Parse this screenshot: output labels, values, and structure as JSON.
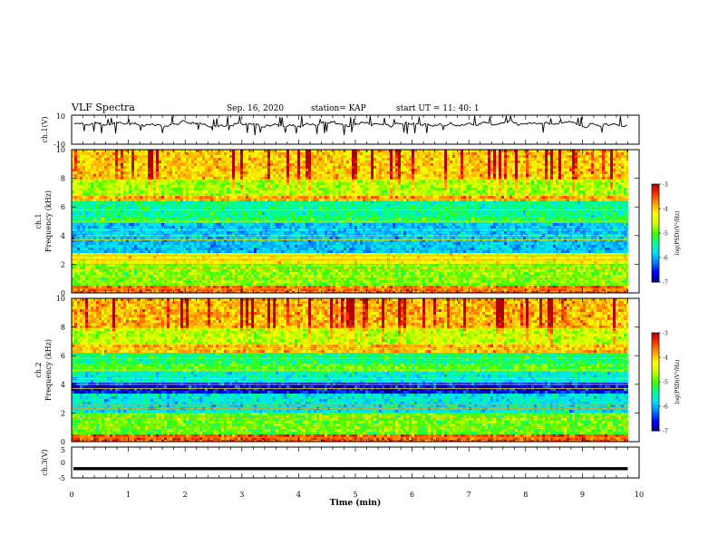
{
  "header": {
    "title": "VLF Spectra",
    "date": "Sep. 16, 2020",
    "station": "station= KAP",
    "start_ut": "start  UT =   11: 40: 1"
  },
  "chart_data": [
    {
      "type": "line",
      "panel": "ch1-waveform",
      "ylabel": "ch.1(V)",
      "yticks": [
        "10",
        "-10"
      ],
      "ylim": [
        -10,
        10
      ],
      "xlim": [
        0,
        10
      ],
      "series": [
        {
          "color": "#000000",
          "approx_level": 3.5,
          "approx_range": [
            0,
            7
          ]
        }
      ]
    },
    {
      "type": "heatmap",
      "panel": "ch1-spectrogram",
      "ylabel_line1": "ch.1",
      "ylabel_line2": "Frequency (kHz)",
      "yticks": [
        "0",
        "2",
        "4",
        "6",
        "8",
        "10"
      ],
      "ylim": [
        0,
        10
      ],
      "xlim": [
        0,
        10
      ],
      "data_end_min": 9.8,
      "bands": [
        {
          "freq_from": 0,
          "freq_to": 0.5,
          "level": -3.6
        },
        {
          "freq_from": 0.5,
          "freq_to": 2.1,
          "level": -4.8
        },
        {
          "freq_from": 2.1,
          "freq_to": 2.8,
          "level": -4.3
        },
        {
          "freq_from": 2.8,
          "freq_to": 4.8,
          "level": -5.9
        },
        {
          "freq_from": 4.8,
          "freq_to": 5.3,
          "level": -5.2
        },
        {
          "freq_from": 5.3,
          "freq_to": 6.3,
          "level": -5.4
        },
        {
          "freq_from": 6.3,
          "freq_to": 6.8,
          "level": -3.8
        },
        {
          "freq_from": 6.8,
          "freq_to": 8.0,
          "level": -4.7
        },
        {
          "freq_from": 8.0,
          "freq_to": 10.0,
          "level": -4.0
        }
      ],
      "colorbar": {
        "label": "log(PSD)(V²/Hz)",
        "ticks": [
          "-3",
          "-4",
          "-5",
          "-6",
          "-7"
        ],
        "range": [
          -7,
          -3
        ]
      }
    },
    {
      "type": "heatmap",
      "panel": "ch2-spectrogram",
      "ylabel_line1": "ch.2",
      "ylabel_line2": "Frequency (kHz)",
      "yticks": [
        "0",
        "2",
        "4",
        "6",
        "8",
        "10"
      ],
      "ylim": [
        0,
        10
      ],
      "xlim": [
        0,
        10
      ],
      "data_end_min": 9.8,
      "bands": [
        {
          "freq_from": 0,
          "freq_to": 0.5,
          "level": -3.5
        },
        {
          "freq_from": 0.5,
          "freq_to": 2.0,
          "level": -4.9
        },
        {
          "freq_from": 2.0,
          "freq_to": 3.4,
          "level": -5.7
        },
        {
          "freq_from": 3.4,
          "freq_to": 4.1,
          "level": -6.6
        },
        {
          "freq_from": 4.1,
          "freq_to": 4.8,
          "level": -5.6
        },
        {
          "freq_from": 4.8,
          "freq_to": 5.5,
          "level": -5.0
        },
        {
          "freq_from": 5.5,
          "freq_to": 6.2,
          "level": -5.3
        },
        {
          "freq_from": 6.2,
          "freq_to": 6.7,
          "level": -3.9
        },
        {
          "freq_from": 6.7,
          "freq_to": 8.0,
          "level": -4.6
        },
        {
          "freq_from": 8.0,
          "freq_to": 10.0,
          "level": -3.9
        }
      ],
      "colorbar": {
        "label": "log(PSD)(V²/Hz)",
        "ticks": [
          "-3",
          "-4",
          "-5",
          "-6",
          "-7"
        ],
        "range": [
          -7,
          -3
        ]
      }
    },
    {
      "type": "line",
      "panel": "ch3-waveform",
      "ylabel": "ch.3(V)",
      "yticks": [
        "5",
        "0",
        "-5"
      ],
      "ylim": [
        -5,
        5
      ],
      "xlim": [
        0,
        10
      ],
      "series": [
        {
          "color": "#000000",
          "approx_level": -2.0,
          "approx_range": [
            -2.5,
            -1.5
          ]
        }
      ]
    }
  ],
  "xaxis": {
    "label": "Time (min)",
    "ticks": [
      "0",
      "1",
      "2",
      "3",
      "4",
      "5",
      "6",
      "7",
      "8",
      "9",
      "10"
    ],
    "range": [
      0,
      10
    ]
  },
  "colors": {
    "colormap": [
      "#00007a",
      "#0000ff",
      "#0080ff",
      "#00e0ff",
      "#00ff90",
      "#40ff00",
      "#c8ff00",
      "#ffff00",
      "#ffa000",
      "#ff3000",
      "#b00000"
    ],
    "trace": "#000000"
  }
}
